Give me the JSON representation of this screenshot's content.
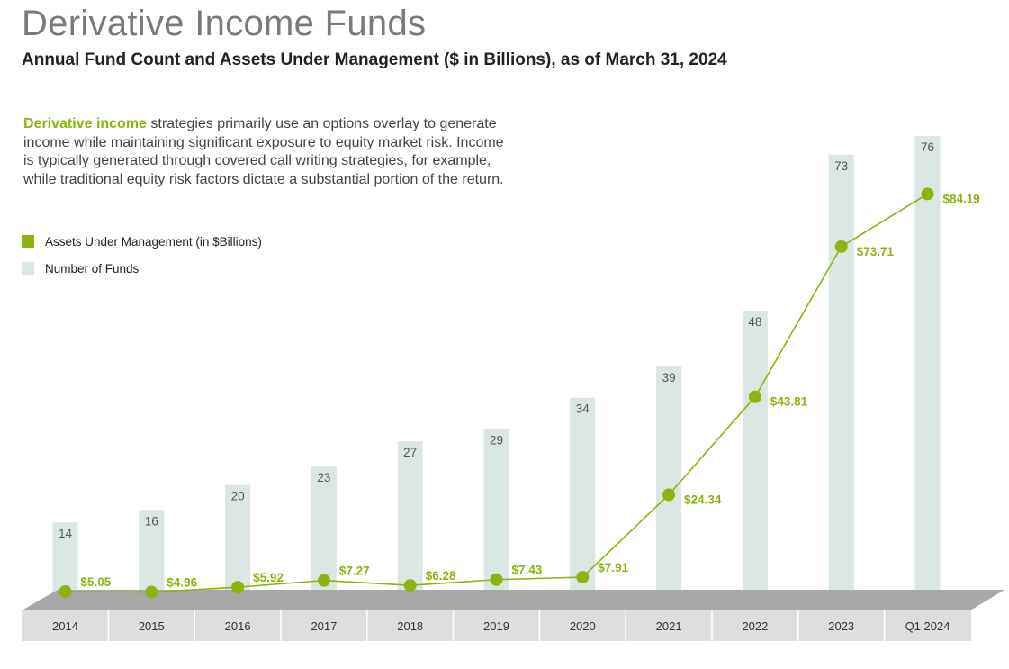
{
  "header": {
    "title": "Derivative Income Funds",
    "subtitle": "Annual Fund Count and Assets Under Management ($ in Billions), as of March 31, 2024"
  },
  "description": {
    "highlight": "Derivative income",
    "body": " strategies primarily use an options overlay to generate income while maintaining significant exposure to equity market risk. Income is typically generated through covered call writing strategies, for example, while traditional equity risk factors dictate a substantial portion of the return."
  },
  "colors": {
    "accent": "#8db310",
    "bar": "#dbe7e2",
    "floor": "#a3a3a3",
    "axis_band": "#dedede",
    "label": "#555555"
  },
  "chart_data": {
    "type": "bar",
    "legend_placement": "top-left",
    "grid": false,
    "categories": [
      "2014",
      "2015",
      "2016",
      "2017",
      "2018",
      "2019",
      "2020",
      "2021",
      "2022",
      "2023",
      "Q1 2024"
    ],
    "series": [
      {
        "name": "Number of Funds",
        "kind": "bar",
        "values": [
          14,
          16,
          20,
          23,
          27,
          29,
          34,
          39,
          48,
          73,
          76
        ],
        "labels": [
          "14",
          "16",
          "20",
          "23",
          "27",
          "29",
          "34",
          "39",
          "48",
          "73",
          "76"
        ]
      },
      {
        "name": "Assets Under Management (in $Billions)",
        "kind": "line",
        "values": [
          5.05,
          4.96,
          5.92,
          7.27,
          6.28,
          7.43,
          7.91,
          24.34,
          43.81,
          73.71,
          84.19
        ],
        "labels": [
          "$5.05",
          "$4.96",
          "$5.92",
          "$7.27",
          "$6.28",
          "$7.43",
          "$7.91",
          "$24.34",
          "$43.81",
          "$73.71",
          "$84.19"
        ]
      }
    ]
  }
}
